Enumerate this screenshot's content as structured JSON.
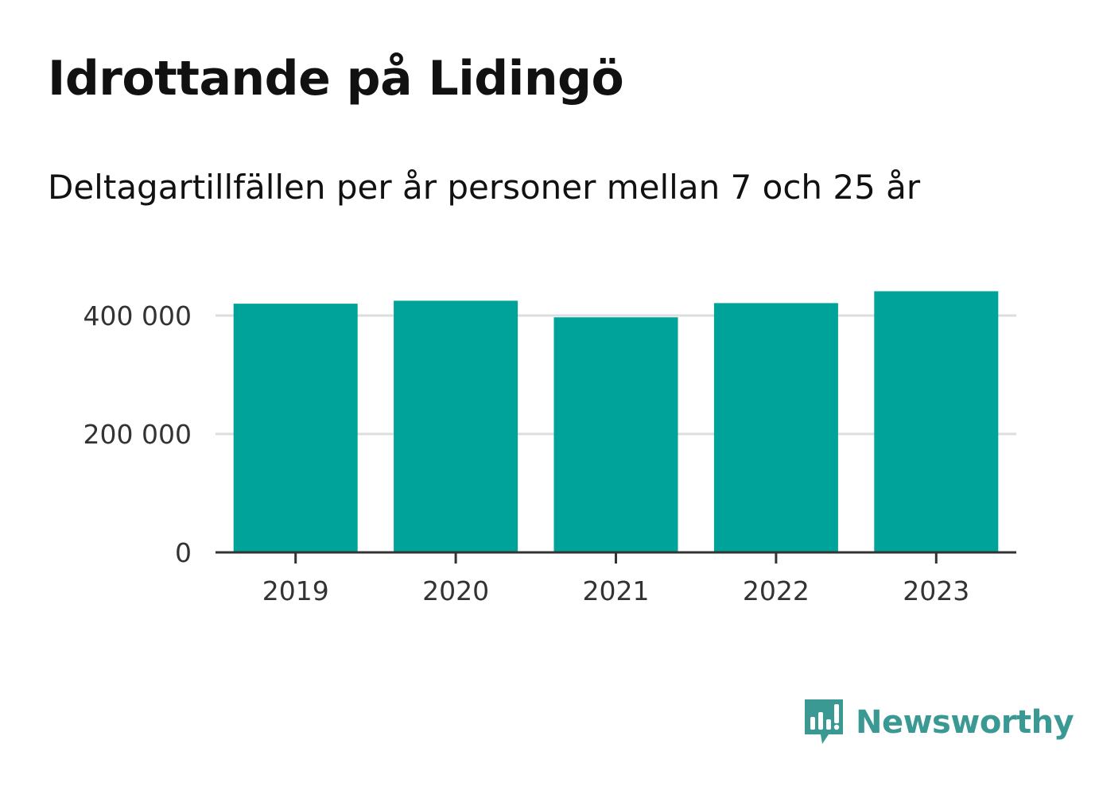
{
  "title": "Idrottande på Lidingö",
  "subtitle": "Deltagartillfällen per år personer mellan 7 och 25 år",
  "colors": {
    "bar": "#00a39a",
    "grid": "#dddddd",
    "axis": "#333333",
    "brand": "#3a9a93"
  },
  "brand": {
    "name": "Newsworthy",
    "icon": "bar-chart-speech-bubble-icon"
  },
  "chart_data": {
    "type": "bar",
    "categories": [
      "2019",
      "2020",
      "2021",
      "2022",
      "2023"
    ],
    "values": [
      420000,
      425000,
      397000,
      421000,
      441000
    ],
    "ylim": [
      0,
      400000
    ],
    "yticks": [
      0,
      200000,
      400000
    ],
    "ytick_labels": [
      "0",
      "200 000",
      "400 000"
    ],
    "grid": true,
    "legend": "none"
  }
}
